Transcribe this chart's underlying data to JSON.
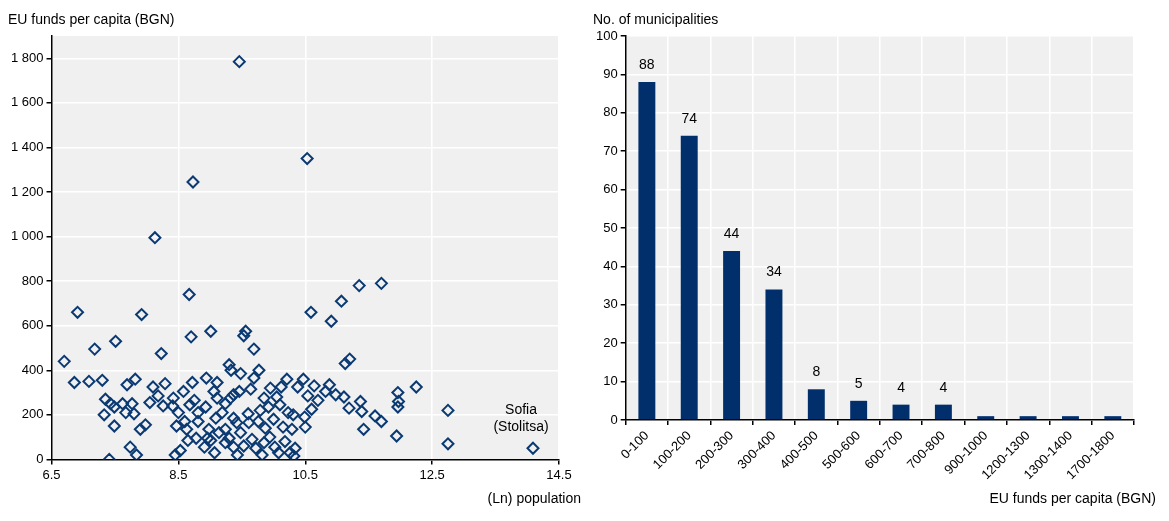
{
  "chart_data": [
    {
      "type": "scatter",
      "ylabel": "EU funds per capita (BGN)",
      "xlabel": "(Ln) population",
      "xlim": [
        6.5,
        14.5
      ],
      "xticks": [
        6.5,
        8.5,
        10.5,
        12.5,
        14.5
      ],
      "ylim": [
        0,
        1900
      ],
      "yticks": [
        0,
        200,
        400,
        600,
        800,
        {
          "value": 1000,
          "label": "1 000"
        },
        {
          "value": 1200,
          "label": "1 200"
        },
        {
          "value": 1400,
          "label": "1 400"
        },
        {
          "value": 1600,
          "label": "1 600"
        },
        {
          "value": 1800,
          "label": "1 800"
        }
      ],
      "grid": true,
      "marker": "diamond",
      "legend": false,
      "series": [
        {
          "color": "#0b3a73",
          "x": [
            9.46,
            10.53,
            8.73,
            8.13,
            8.67,
            6.91,
            7.92,
            10.59,
            11.35,
            11.7,
            10.91,
            11.07,
            11.2,
            11.13,
            6.7,
            7.18,
            7.51,
            8.23,
            9.01,
            8.7,
            9.56,
            9.53,
            9.69,
            9.3,
            9.33,
            8.94,
            7.09,
            7.3,
            7.82,
            6.86,
            7.69,
            8.1,
            8.29,
            8.72,
            9.11,
            8.18,
            8.05,
            7.43,
            7.49,
            7.35,
            7.77,
            7.33,
            7.62,
            7.67,
            7.49,
            7.9,
            7.98,
            7.8,
            8.41,
            8.5,
            8.6,
            8.68,
            8.75,
            8.93,
            8.81,
            8.47,
            8.63,
            8.81,
            8.98,
            9.09,
            9.19,
            9.24,
            9.32,
            9.37,
            9.48,
            9.69,
            9.77,
            9.95,
            10.12,
            10.21,
            10.38,
            10.47,
            10.64,
            10.54,
            10.7,
            10.82,
            10.88,
            10.98,
            11.11,
            10.6,
            10.49,
            10.5,
            10.31,
            10.29,
            11.19,
            11.37,
            11.39,
            11.42,
            11.6,
            11.7,
            11.96,
            11.97,
            11.96,
            11.94,
            12.25,
            12.75,
            12.75,
            14.09,
            7.41,
            7.74,
            7.84,
            8.45,
            8.53,
            9.14,
            9.24,
            9.37,
            9.3,
            9.48,
            9.53,
            9.66,
            9.72,
            9.85,
            9.94,
            10.02,
            10.08,
            10.18,
            10.26,
            10.34,
            10.32,
            9.61,
            9.76,
            9.87,
            10.0,
            10.15,
            9.42,
            9.01,
            8.91,
            9.07,
            9.43,
            9.82,
            8.96,
            8.78,
            8.65,
            9.24,
            9.37,
            9.6,
            9.79,
            9.92,
            10.1,
            10.23,
            10.05,
            9.85,
            9.64,
            9.46,
            9.11,
            9.06,
            8.58,
            8.42,
            8.26
          ],
          "values": [
            1785,
            1350,
            1245,
            995,
            740,
            660,
            650,
            660,
            780,
            790,
            620,
            710,
            450,
            430,
            440,
            495,
            530,
            475,
            575,
            550,
            575,
            555,
            495,
            425,
            400,
            365,
            350,
            355,
            360,
            345,
            335,
            325,
            340,
            345,
            345,
            285,
            255,
            250,
            235,
            270,
            250,
            200,
            250,
            210,
            150,
            135,
            155,
            205,
            240,
            210,
            170,
            245,
            265,
            235,
            210,
            150,
            135,
            170,
            135,
            185,
            210,
            250,
            275,
            290,
            385,
            365,
            400,
            320,
            325,
            360,
            325,
            360,
            330,
            285,
            265,
            305,
            335,
            290,
            280,
            225,
            190,
            145,
            200,
            135,
            230,
            260,
            215,
            135,
            195,
            170,
            300,
            260,
            235,
            105,
            325,
            220,
            70,
            50,
            0,
            55,
            20,
            20,
            40,
            120,
            75,
            55,
            95,
            120,
            60,
            90,
            50,
            75,
            100,
            55,
            30,
            80,
            30,
            50,
            15,
            165,
            170,
            140,
            180,
            145,
            165,
            85,
            55,
            30,
            20,
            20,
            95,
            95,
            85,
            135,
            185,
            205,
            220,
            235,
            245,
            210,
            280,
            275,
            315,
            305,
            275,
            305,
            305,
            275,
            240
          ]
        }
      ],
      "annotations": [
        {
          "text": "Sofia (Stolitsa)",
          "x": 14.09,
          "y": 50
        }
      ]
    },
    {
      "type": "bar",
      "ylabel": "No. of municipalities",
      "xlabel": "EU funds per capita (BGN)",
      "categories": [
        "0-100",
        "100-200",
        "200-300",
        "300-400",
        "400-500",
        "500-600",
        "600-700",
        "700-800",
        "900-1000",
        "1200-1300",
        "1300-1400",
        "1700-1800"
      ],
      "values": [
        88,
        74,
        44,
        34,
        8,
        5,
        4,
        4,
        1,
        1,
        1,
        1
      ],
      "value_labels": [
        "88",
        "74",
        "44",
        "34",
        "8",
        "5",
        "4",
        "4",
        null,
        null,
        null,
        null
      ],
      "color": "#002f6c",
      "ylim": [
        0,
        100
      ],
      "yticks": [
        0,
        10,
        20,
        30,
        40,
        50,
        60,
        70,
        80,
        90,
        100
      ],
      "grid": true,
      "legend": false
    }
  ]
}
